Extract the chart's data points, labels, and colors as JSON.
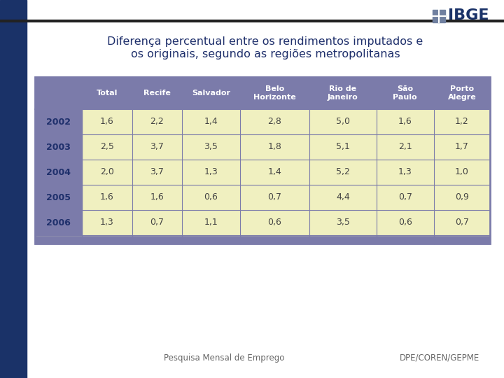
{
  "title_line1": "Diferença percentual entre os rendimentos imputados e",
  "title_line2": "os originais, segundo as regiões metropolitanas",
  "headers": [
    "",
    "Total",
    "Recife",
    "Salvador",
    "Belo\nHorizonte",
    "Rio de\nJaneiro",
    "São\nPaulo",
    "Porto\nAlegre"
  ],
  "years": [
    "2002",
    "2003",
    "2004",
    "2005",
    "2006"
  ],
  "data": [
    [
      "1,6",
      "2,2",
      "1,4",
      "2,8",
      "5,0",
      "1,6",
      "1,2"
    ],
    [
      "2,5",
      "3,7",
      "3,5",
      "1,8",
      "5,1",
      "2,1",
      "1,7"
    ],
    [
      "2,0",
      "3,7",
      "1,3",
      "1,4",
      "5,2",
      "1,3",
      "1,0"
    ],
    [
      "1,6",
      "1,6",
      "0,6",
      "0,7",
      "4,4",
      "0,7",
      "0,9"
    ],
    [
      "1,3",
      "0,7",
      "1,1",
      "0,6",
      "3,5",
      "0,6",
      "0,7"
    ]
  ],
  "header_bg": "#7b7baa",
  "row_bg": "#f0f0c0",
  "year_bg": "#7b7baa",
  "year_text_color": "#1e2f6b",
  "header_text_color": "#ffffff",
  "data_text_color": "#444444",
  "table_border_color": "#7b7baa",
  "footer_left": "Pesquisa Mensal de Emprego",
  "footer_right": "DPE/COREN/GEPME",
  "bg_color": "#ffffff",
  "left_bar_color": "#1a3268",
  "title_color": "#1e2f6b",
  "top_line_color": "#333333"
}
